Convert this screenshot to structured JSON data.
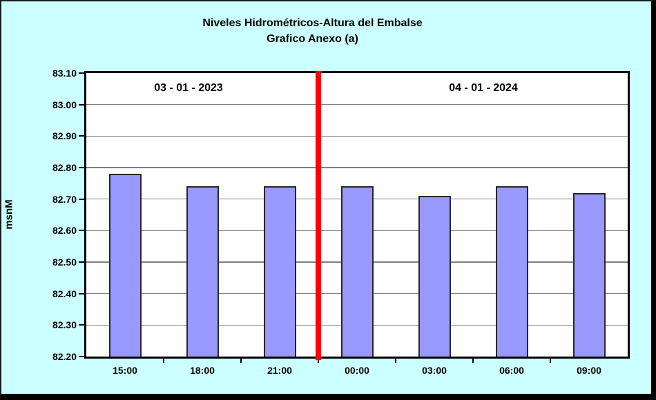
{
  "window": {
    "background_color": "#CCFFFF",
    "frame_color": "#000000"
  },
  "chart_data": {
    "type": "bar",
    "title": "Niveles Hidrométricos-Altura del Embalse",
    "subtitle": "Grafico Anexo (a)",
    "ylabel": "msnM",
    "xlabel": "",
    "categories": [
      "15:00",
      "18:00",
      "21:00",
      "00:00",
      "03:00",
      "06:00",
      "09:00"
    ],
    "values": [
      82.78,
      82.74,
      82.74,
      82.74,
      82.71,
      82.74,
      82.72
    ],
    "ylim": [
      82.2,
      83.1
    ],
    "yticks": [
      "83.10",
      "83.00",
      "82.90",
      "82.80",
      "82.70",
      "82.60",
      "82.50",
      "82.40",
      "82.30",
      "82.20"
    ],
    "grid": true,
    "legend": "none",
    "plot_background": "#FFFFFF",
    "bar_color": "#9999FF",
    "bar_border_color": "#262626",
    "gridline_color": "#7f7f7f",
    "separator": {
      "after_category_index": 2,
      "color": "#FF0000",
      "left_label": "03 - 01 - 2023",
      "right_label": "04 - 01 - 2024"
    }
  }
}
